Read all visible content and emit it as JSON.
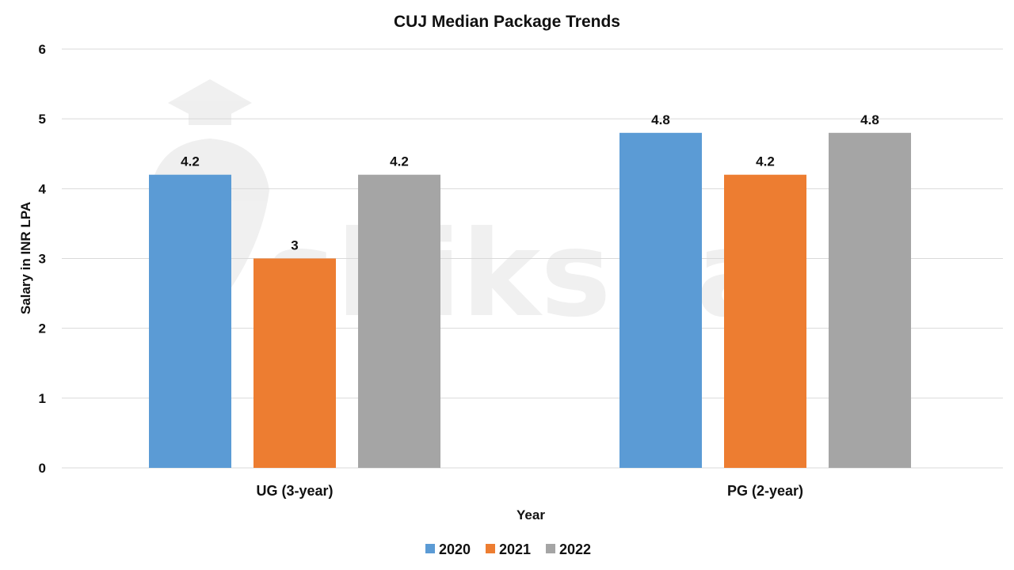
{
  "chart_data": {
    "type": "bar",
    "title": "CUJ Median Package Trends",
    "xlabel": "Year",
    "ylabel": "Salary in INR LPA",
    "categories": [
      "UG (3-year)",
      "PG (2-year)"
    ],
    "series": [
      {
        "name": "2020",
        "color": "#5b9bd5",
        "values": [
          4.2,
          4.8
        ]
      },
      {
        "name": "2021",
        "color": "#ed7d31",
        "values": [
          3,
          4.2
        ]
      },
      {
        "name": "2022",
        "color": "#a5a5a5",
        "values": [
          4.2,
          4.8
        ]
      }
    ],
    "ylim": [
      0,
      6
    ],
    "yticks": [
      0,
      1,
      2,
      3,
      4,
      5,
      6
    ],
    "grid": true,
    "legend": "bottom"
  },
  "watermark": {
    "text": "shiksha"
  }
}
